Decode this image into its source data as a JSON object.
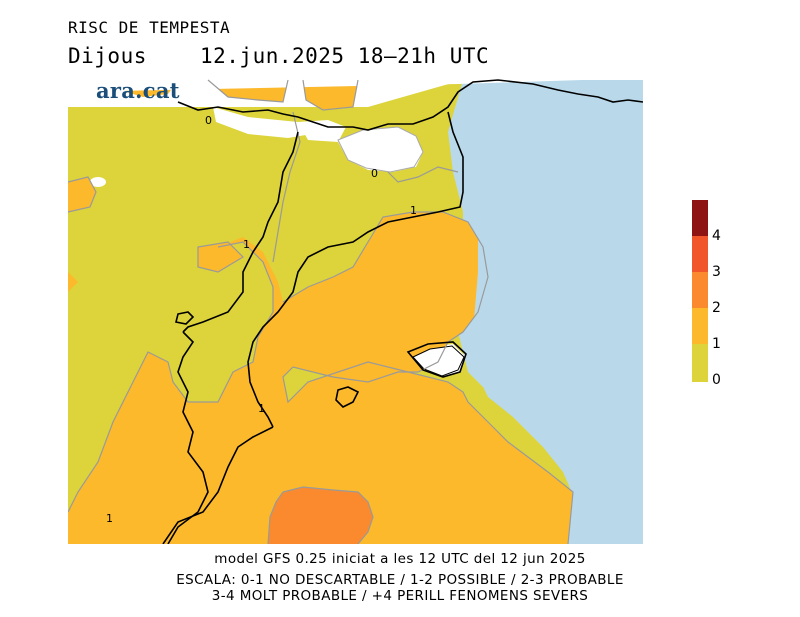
{
  "header": {
    "title": "RISC DE TEMPESTA",
    "day": "Dijous",
    "datetime": "12.jun.2025  18–21h  UTC"
  },
  "logo": {
    "text": "ara.cat"
  },
  "map": {
    "contour_labels": [
      "0",
      "0",
      "1",
      "1",
      "1",
      "1"
    ],
    "colors": {
      "sea": "#b9d9ea",
      "level_0": "#dcd43a",
      "level_1": "#fcb92c",
      "level_2": "#fa8a2d",
      "level_3": "#f0562a",
      "level_4": "#8e1414",
      "no_data": "#ffffff"
    }
  },
  "legend": {
    "labels": [
      "4",
      "3",
      "2",
      "1",
      "0"
    ]
  },
  "footer": {
    "line1": "model GFS 0.25 iniciat a les 12 UTC del 12 jun 2025",
    "line2": "ESCALA: 0-1 NO DESCARTABLE / 1-2 POSSIBLE / 2-3 PROBABLE",
    "line3": "3-4 MOLT PROBABLE / +4 PERILL FENOMENS SEVERS"
  }
}
